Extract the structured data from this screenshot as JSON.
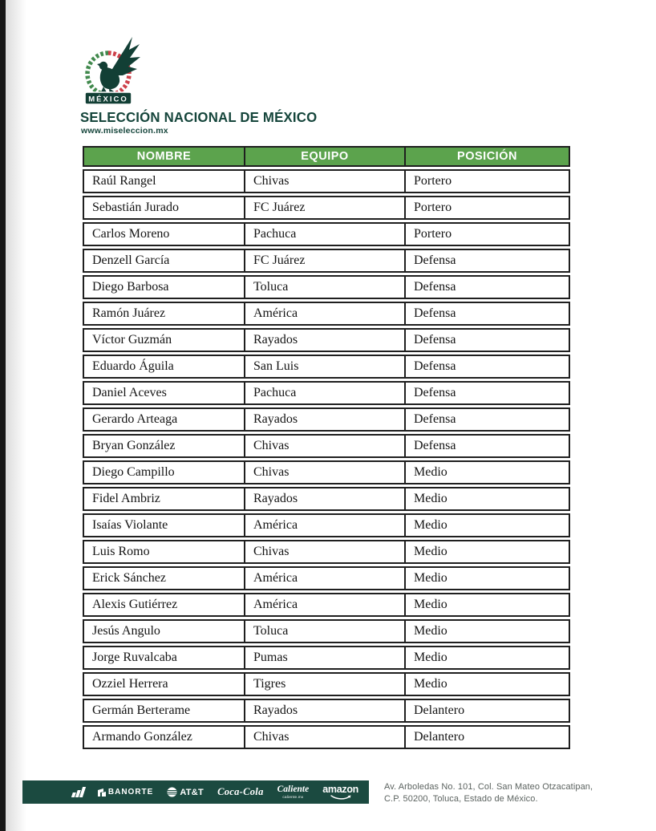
{
  "brand": {
    "title": "SELECCIÓN NACIONAL DE MÉXICO",
    "url": "www.miseleccion.mx",
    "logo_text": "MÉXICO"
  },
  "colors": {
    "table_header_green": "#5ca34d",
    "dark_green": "#1b4a40",
    "brand_green": "#16463c",
    "crest_red": "#cd4049",
    "crest_green": "#41894d"
  },
  "table": {
    "columns": [
      "NOMBRE",
      "EQUIPO",
      "POSICIÓN"
    ],
    "rows": [
      [
        "Raúl Rangel",
        "Chivas",
        "Portero"
      ],
      [
        "Sebastián Jurado",
        "FC Juárez",
        "Portero"
      ],
      [
        "Carlos Moreno",
        "Pachuca",
        "Portero"
      ],
      [
        "Denzell García",
        "FC Juárez",
        "Defensa"
      ],
      [
        "Diego Barbosa",
        "Toluca",
        "Defensa"
      ],
      [
        "Ramón Juárez",
        "América",
        "Defensa"
      ],
      [
        "Víctor Guzmán",
        "Rayados",
        "Defensa"
      ],
      [
        "Eduardo Águila",
        "San Luis",
        "Defensa"
      ],
      [
        "Daniel Aceves",
        "Pachuca",
        "Defensa"
      ],
      [
        "Gerardo Arteaga",
        "Rayados",
        "Defensa"
      ],
      [
        "Bryan González",
        "Chivas",
        "Defensa"
      ],
      [
        "Diego Campillo",
        "Chivas",
        "Medio"
      ],
      [
        "Fidel Ambriz",
        "Rayados",
        "Medio"
      ],
      [
        "Isaías Violante",
        "América",
        "Medio"
      ],
      [
        "Luis Romo",
        "Chivas",
        "Medio"
      ],
      [
        "Erick Sánchez",
        "América",
        "Medio"
      ],
      [
        "Alexis Gutiérrez",
        "América",
        "Medio"
      ],
      [
        "Jesús Angulo",
        "Toluca",
        "Medio"
      ],
      [
        "Jorge Ruvalcaba",
        "Pumas",
        "Medio"
      ],
      [
        "Ozziel Herrera",
        "Tigres",
        "Medio"
      ],
      [
        "Germán Berterame",
        "Rayados",
        "Delantero"
      ],
      [
        "Armando González",
        "Chivas",
        "Delantero"
      ]
    ]
  },
  "footer": {
    "sponsors": [
      {
        "name": "adidas",
        "label": ""
      },
      {
        "name": "banorte",
        "label": "BANORTE"
      },
      {
        "name": "att",
        "label": "AT&T"
      },
      {
        "name": "coca-cola",
        "label": "Coca-Cola"
      },
      {
        "name": "caliente",
        "label": "Caliente",
        "sub": "caliente.mx"
      },
      {
        "name": "amazon",
        "label": "amazon"
      }
    ],
    "address_line1": "Av. Arboledas No. 101, Col. San Mateo Otzacatipan,",
    "address_line2": "C.P. 50200, Toluca, Estado de México."
  }
}
